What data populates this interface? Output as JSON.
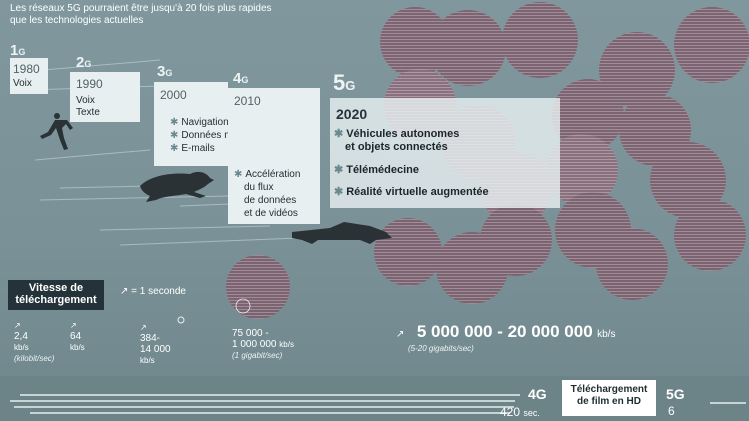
{
  "header": {
    "line1": "Les réseaux 5G pourraient être jusqu'à 20 fois plus rapides",
    "line2": "que les technologies actuelles"
  },
  "generations": [
    {
      "num": "1",
      "g": "G",
      "year": "1980",
      "lines": [
        "Voix"
      ]
    },
    {
      "num": "2",
      "g": "G",
      "year": "1990",
      "lines": [
        "Voix",
        "Texte"
      ]
    },
    {
      "num": "3",
      "g": "G",
      "year": "2000",
      "bullets": [
        "Navigation Internet",
        "Données mobiles",
        "E-mails"
      ]
    },
    {
      "num": "4",
      "g": "G",
      "year": "2010",
      "bullets": [
        "Accélération",
        "du flux",
        "de données",
        "et de vidéos"
      ]
    },
    {
      "num": "5",
      "g": "G",
      "year": "2020",
      "bullets": [
        "Véhicules autonomes",
        "et objets connectés",
        "Télémédecine",
        "Réalité virtuelle augmentée"
      ]
    }
  ],
  "legend": {
    "title_line1": "Vitesse de",
    "title_line2": "téléchargement",
    "dot_meaning": "= 1 seconde"
  },
  "speeds": [
    {
      "value": "2,4",
      "unit": "kb/s",
      "note": "(kilobit/sec)"
    },
    {
      "value": "64",
      "unit": "kb/s",
      "note": ""
    },
    {
      "value": "384-",
      "value2": "14 000",
      "unit": "kb/s",
      "note": ""
    },
    {
      "value": "75 000 -",
      "value2": "1 000 000",
      "unit": "kb/s",
      "note": "(1 gigabit/sec)"
    },
    {
      "value": "5 000 000 - 20 000 000",
      "unit": "kb/s",
      "note": "(5-20 gigabits/sec)"
    }
  ],
  "download": {
    "title_line1": "Téléchargement",
    "title_line2": "de film en HD",
    "g4_label": "4G",
    "g4_time": "420",
    "g4_unit": "sec.",
    "g5_label": "5G",
    "g5_time": "6"
  },
  "colors": {
    "background": "#7e969c",
    "panel": "#e8eff0",
    "circle_fill": "#7a5a68",
    "circle_highlight": "#c2586c"
  }
}
